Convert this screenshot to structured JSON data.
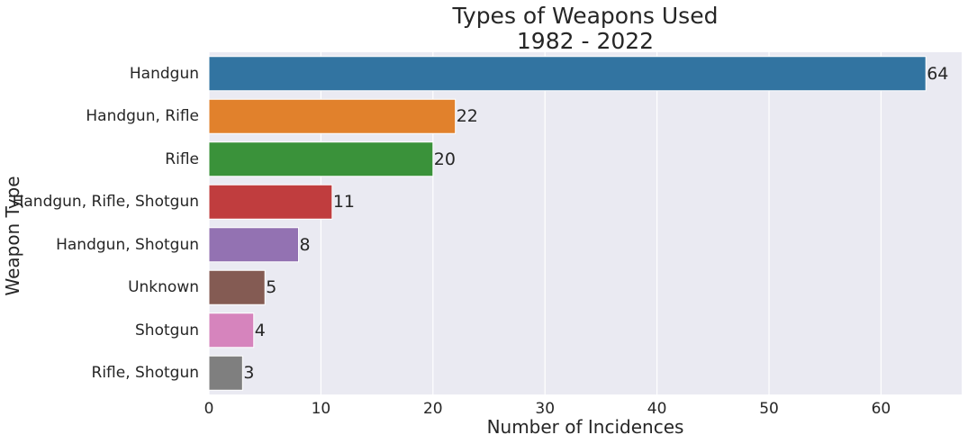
{
  "chart_data": {
    "type": "bar",
    "orientation": "horizontal",
    "title": [
      "Types of Weapons Used",
      "1982 - 2022"
    ],
    "xlabel": "Number of Incidences",
    "ylabel": "Weapon Type",
    "xlim": [
      0,
      67.2
    ],
    "xticks": [
      0,
      10,
      20,
      30,
      40,
      50,
      60
    ],
    "grid": true,
    "categories": [
      "Handgun",
      "Handgun, Rifle",
      "Rifle",
      "Handgun, Rifle, Shotgun",
      "Handgun, Shotgun",
      "Unknown",
      "Shotgun",
      "Rifle, Shotgun"
    ],
    "values": [
      64,
      22,
      20,
      11,
      8,
      5,
      4,
      3
    ],
    "colors": [
      "#3274a1",
      "#e1812c",
      "#3a923a",
      "#c03d3e",
      "#9372b2",
      "#845b53",
      "#d684bd",
      "#7f7f7f"
    ],
    "background": "#eaeaf2"
  }
}
